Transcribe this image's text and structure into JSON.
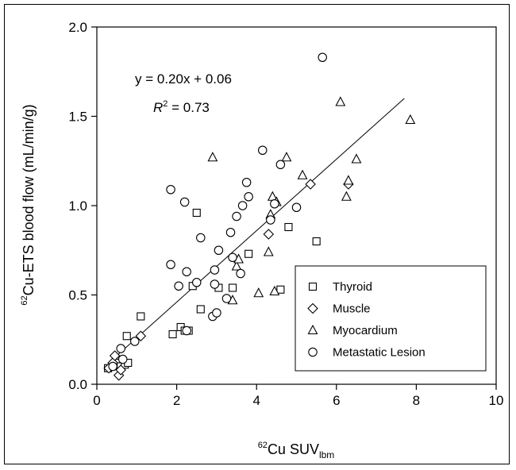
{
  "chart_data": {
    "type": "scatter",
    "xlabel_pre": "62",
    "xlabel_main": "Cu SUV",
    "xlabel_sub": "lbm",
    "ylabel_pre": "62",
    "ylabel_main": "Cu-ETS blood flow (mL/min/g)",
    "xlim": [
      0,
      10
    ],
    "ylim": [
      0,
      2.0
    ],
    "xticks": [
      "0",
      "2",
      "4",
      "6",
      "8",
      "10"
    ],
    "yticks": [
      "0.0",
      "0.5",
      "1.0",
      "1.5",
      "2.0"
    ],
    "grid": false,
    "legend_position": "bottom-right",
    "annotations": {
      "equation": "y = 0.20x + 0.06",
      "r2_label": "R",
      "r2_exp": "2",
      "r2_value": " = 0.73"
    },
    "regression": {
      "slope": 0.2,
      "intercept": 0.06,
      "x_range": [
        0.3,
        7.7
      ]
    },
    "series": [
      {
        "name": "Thyroid",
        "marker": "square",
        "points": [
          [
            0.28,
            0.09
          ],
          [
            0.5,
            0.12
          ],
          [
            0.6,
            0.1
          ],
          [
            0.7,
            0.11
          ],
          [
            0.78,
            0.12
          ],
          [
            0.75,
            0.27
          ],
          [
            1.1,
            0.38
          ],
          [
            1.9,
            0.28
          ],
          [
            2.1,
            0.32
          ],
          [
            2.2,
            0.3
          ],
          [
            2.3,
            0.3
          ],
          [
            2.4,
            0.55
          ],
          [
            2.6,
            0.42
          ],
          [
            2.5,
            0.96
          ],
          [
            3.05,
            0.54
          ],
          [
            3.4,
            0.54
          ],
          [
            3.8,
            0.73
          ],
          [
            4.6,
            0.53
          ],
          [
            4.8,
            0.88
          ],
          [
            5.5,
            0.8
          ]
        ]
      },
      {
        "name": "Muscle",
        "marker": "diamond",
        "points": [
          [
            0.3,
            0.09
          ],
          [
            0.4,
            0.12
          ],
          [
            0.45,
            0.16
          ],
          [
            0.55,
            0.05
          ],
          [
            0.6,
            0.08
          ],
          [
            1.1,
            0.27
          ],
          [
            4.3,
            0.84
          ],
          [
            5.35,
            1.12
          ],
          [
            6.3,
            1.12
          ]
        ]
      },
      {
        "name": "Myocardium",
        "marker": "triangle",
        "points": [
          [
            2.9,
            1.27
          ],
          [
            3.4,
            0.47
          ],
          [
            3.5,
            0.66
          ],
          [
            3.55,
            0.7
          ],
          [
            4.05,
            0.51
          ],
          [
            4.3,
            0.74
          ],
          [
            4.35,
            0.95
          ],
          [
            4.4,
            1.05
          ],
          [
            4.5,
            1.02
          ],
          [
            4.45,
            0.52
          ],
          [
            4.75,
            1.27
          ],
          [
            5.15,
            1.17
          ],
          [
            6.1,
            1.58
          ],
          [
            6.25,
            1.05
          ],
          [
            6.3,
            1.14
          ],
          [
            6.5,
            1.26
          ],
          [
            7.85,
            1.48
          ]
        ]
      },
      {
        "name": "Metastatic Lesion",
        "marker": "circle",
        "points": [
          [
            0.4,
            0.1
          ],
          [
            0.6,
            0.2
          ],
          [
            0.65,
            0.14
          ],
          [
            0.95,
            0.24
          ],
          [
            1.85,
            1.09
          ],
          [
            1.85,
            0.67
          ],
          [
            2.05,
            0.55
          ],
          [
            2.2,
            1.02
          ],
          [
            2.25,
            0.63
          ],
          [
            2.25,
            0.3
          ],
          [
            2.5,
            0.57
          ],
          [
            2.6,
            0.82
          ],
          [
            2.9,
            0.38
          ],
          [
            2.95,
            0.56
          ],
          [
            2.95,
            0.64
          ],
          [
            3.0,
            0.4
          ],
          [
            3.05,
            0.75
          ],
          [
            3.25,
            0.48
          ],
          [
            3.35,
            0.85
          ],
          [
            3.4,
            0.71
          ],
          [
            3.5,
            0.94
          ],
          [
            3.6,
            0.62
          ],
          [
            3.65,
            1.0
          ],
          [
            3.75,
            1.13
          ],
          [
            3.8,
            1.05
          ],
          [
            4.15,
            1.31
          ],
          [
            4.35,
            0.92
          ],
          [
            4.45,
            1.01
          ],
          [
            4.6,
            1.23
          ],
          [
            5.0,
            0.99
          ],
          [
            5.65,
            1.83
          ]
        ]
      }
    ]
  }
}
